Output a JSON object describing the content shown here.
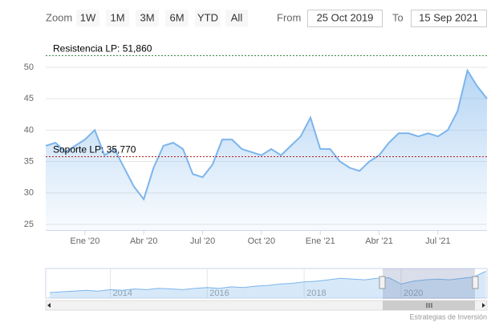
{
  "ui": {
    "zoom_label": "Zoom",
    "buttons": [
      "1W",
      "1M",
      "3M",
      "6M",
      "YTD",
      "All"
    ],
    "from_label": "From",
    "from_value": "25 Oct 2019",
    "to_label": "To",
    "to_value": "15 Sep 2021"
  },
  "chart_data": {
    "type": "area",
    "categories": [
      null,
      null,
      null,
      null,
      "Ene '20",
      null,
      null,
      null,
      null,
      null,
      "Abr '20",
      null,
      null,
      null,
      null,
      null,
      "Jul '20",
      null,
      null,
      null,
      null,
      null,
      "Oct '20",
      null,
      null,
      null,
      null,
      null,
      "Ene '21",
      null,
      null,
      null,
      null,
      null,
      "Abr '21",
      null,
      null,
      null,
      null,
      null,
      "Jul '21",
      null,
      null,
      null,
      null,
      null
    ],
    "series": [
      {
        "color": "#7cb5ec",
        "values": [
          37.5,
          38,
          36.5,
          37.5,
          38.5,
          40,
          36,
          37,
          34,
          31,
          29,
          34,
          37.5,
          38,
          37,
          33,
          32.5,
          34.5,
          38.5,
          38.5,
          37,
          36.5,
          36,
          37,
          36,
          37.5,
          39,
          42,
          37,
          37,
          35,
          34,
          33.5,
          35,
          36,
          38,
          39.5,
          39.5,
          39,
          39.5,
          39,
          40,
          43,
          49.5,
          47,
          45
        ]
      }
    ],
    "ylim": [
      24.1,
      52.8
    ],
    "yticks": [
      25,
      30,
      35,
      40,
      45,
      50
    ],
    "grid": true,
    "plot_lines": [
      {
        "value": 51.86,
        "label": "Resistencia LP: 51,860",
        "color": "#2e7d32"
      },
      {
        "value": 35.77,
        "label": "Soporte LP: 35,770",
        "color": "#b71c1c"
      }
    ]
  },
  "navigator": {
    "type": "area",
    "categories": [
      null,
      null,
      null,
      null,
      null,
      "2014",
      null,
      null,
      null,
      null,
      null,
      null,
      null,
      "2016",
      null,
      null,
      null,
      null,
      null,
      null,
      null,
      "2018",
      null,
      null,
      null,
      null,
      null,
      null,
      null,
      "2020",
      null,
      null,
      null,
      null,
      null,
      null,
      null
    ],
    "values": [
      18,
      19,
      20,
      21,
      20,
      22,
      21,
      23,
      22,
      24,
      23,
      22,
      24,
      25,
      24,
      26,
      25,
      27,
      28,
      30,
      31,
      33,
      34,
      36,
      38,
      37,
      36,
      38,
      39,
      30,
      34,
      36,
      37,
      36,
      38,
      40,
      48
    ],
    "color": "#7cb5ec",
    "ylim": [
      10,
      52
    ]
  },
  "credit": "Estrategias de Inversión"
}
